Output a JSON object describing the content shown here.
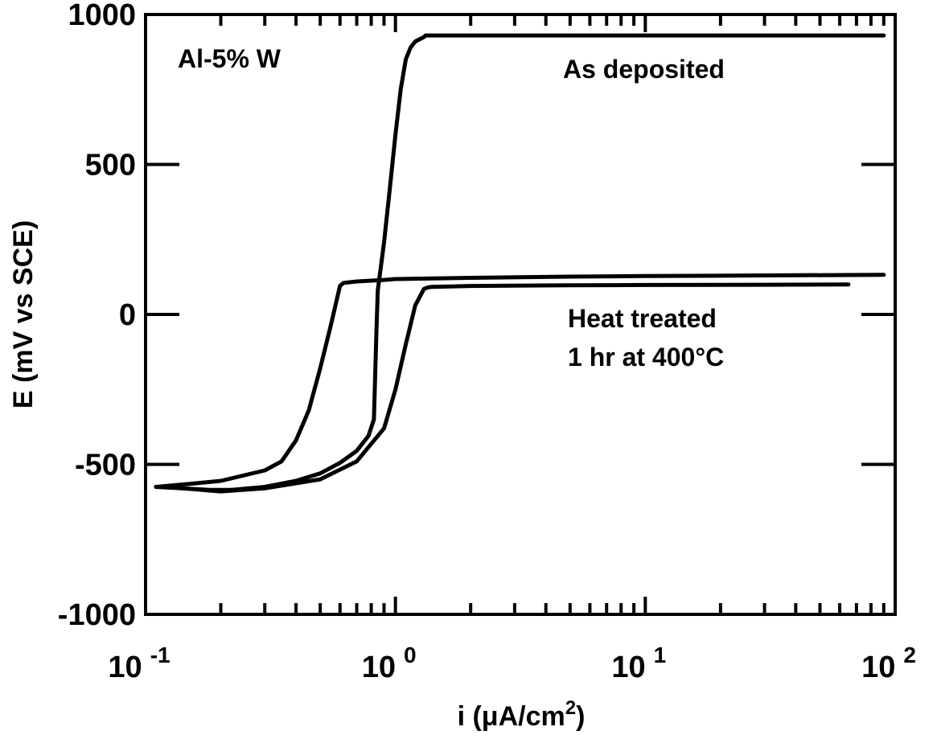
{
  "chart_data": {
    "type": "line",
    "xscale": "log",
    "xlim": [
      0.1,
      100
    ],
    "ylim": [
      -1000,
      1000
    ],
    "x_major_ticks": [
      {
        "value": 0.1,
        "base": "10",
        "exp": "-1"
      },
      {
        "value": 1,
        "base": "10",
        "exp": "0"
      },
      {
        "value": 10,
        "base": "10",
        "exp": "1"
      },
      {
        "value": 100,
        "base": "10",
        "exp": "2"
      }
    ],
    "y_ticks": [
      {
        "value": 1000,
        "label": "1000"
      },
      {
        "value": 500,
        "label": "500"
      },
      {
        "value": 0,
        "label": "0"
      },
      {
        "value": -500,
        "label": "-500"
      },
      {
        "value": -1000,
        "label": "-1000"
      }
    ],
    "xlabel_main": "i (μA/cm",
    "xlabel_sup": "2",
    "xlabel_end": ")",
    "ylabel": "E (mV vs SCE)",
    "annotations": {
      "alloy": "Al-5% W",
      "as_deposited": "As deposited",
      "heat_treated_line1": "Heat treated",
      "heat_treated_line2": "1 hr at 400°C"
    },
    "series": [
      {
        "x": [
          0.11,
          0.14,
          0.18,
          0.22,
          0.3,
          0.4,
          0.5,
          0.6,
          0.7,
          0.78,
          0.82,
          0.83,
          0.84,
          0.85,
          0.9,
          0.95,
          1.0,
          1.05,
          1.1,
          1.15,
          1.2,
          1.3,
          1.32,
          1.35,
          2,
          5,
          10,
          30,
          60,
          90
        ],
        "y": [
          -575,
          -580,
          -585,
          -585,
          -575,
          -555,
          -530,
          -495,
          -455,
          -405,
          -350,
          -200,
          -50,
          80,
          240,
          420,
          600,
          750,
          850,
          890,
          910,
          925,
          930,
          930,
          930,
          930,
          930,
          930,
          930,
          930
        ]
      },
      {
        "x": [
          0.11,
          0.15,
          0.2,
          0.3,
          0.35,
          0.4,
          0.45,
          0.5,
          0.55,
          0.6,
          0.61,
          0.62,
          0.7,
          0.9,
          1.0,
          2,
          5,
          10,
          30,
          90
        ],
        "y": [
          -575,
          -565,
          -555,
          -520,
          -490,
          -420,
          -320,
          -180,
          -40,
          95,
          100,
          105,
          110,
          115,
          118,
          122,
          126,
          128,
          130,
          132
        ]
      },
      {
        "x": [
          0.12,
          0.2,
          0.3,
          0.5,
          0.7,
          0.9,
          1.0,
          1.1,
          1.2,
          1.3,
          1.35,
          1.4,
          2,
          5,
          10,
          30,
          65
        ],
        "y": [
          -575,
          -590,
          -580,
          -550,
          -490,
          -380,
          -250,
          -100,
          30,
          85,
          90,
          92,
          95,
          97,
          98,
          99,
          100
        ]
      }
    ]
  }
}
